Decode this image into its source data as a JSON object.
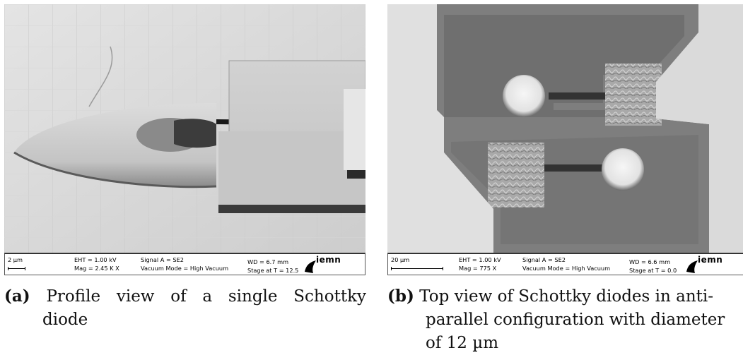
{
  "figures": [
    {
      "label": "(a)",
      "caption_lines": [
        "Profile view of a single Schottky",
        "diode"
      ],
      "info": {
        "scale": "2 µm",
        "eht": "EHT =  1.00 kV",
        "mag": "Mag =   2.45 K X",
        "signal": "Signal A = SE2",
        "vacuum": "Vacuum Mode = High Vacuum",
        "wd": "WD =  6.7 mm",
        "stage": "Stage at T =  12.5"
      },
      "logo": "iemn"
    },
    {
      "label": "(b)",
      "caption_lines": [
        "Top view of Schottky diodes in anti-",
        "parallel configuration with diameter",
        "of 12 µm"
      ],
      "info": {
        "scale": "20 µm",
        "eht": "EHT =  1.00 kV",
        "mag": "Mag =   775 X",
        "signal": "Signal A = SE2",
        "vacuum": "Vacuum Mode = High Vacuum",
        "wd": "WD =  6.6 mm",
        "stage": "Stage at T =  0.0"
      },
      "logo": "iemn"
    }
  ]
}
